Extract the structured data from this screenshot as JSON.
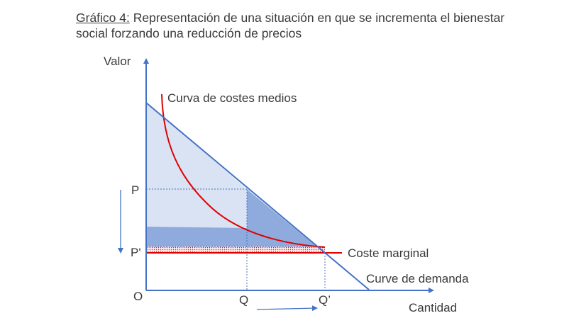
{
  "title": {
    "prefix": "Gráfico 4:",
    "text": " Representación de una situación en que se incrementa el bienestar social forzando una reducción de precios"
  },
  "labels": {
    "y_axis": "Valor",
    "x_axis": "Cantidad",
    "origin": "O",
    "price_high": "P",
    "price_low": "P'",
    "qty_low": "Q",
    "qty_high": "Q’",
    "avg_cost": "Curva de costes medios",
    "marginal_cost": "Coste marginal",
    "demand": "Curve de demanda"
  },
  "colors": {
    "axis": "#4472c4",
    "demand": "#4472c4",
    "avg_cost": "#e00000",
    "marginal_cost": "#e00000",
    "light_fill": "#dae3f3",
    "dark_fill": "#8faadc",
    "dotted_fill": "#f4c7c7",
    "text": "#3a3a3a"
  }
}
